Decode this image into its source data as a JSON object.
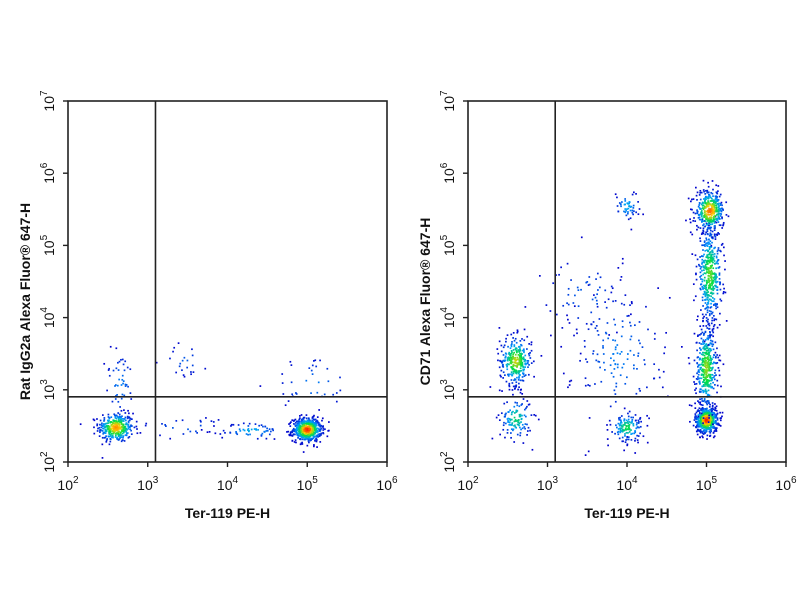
{
  "colors": {
    "frame": "#222222",
    "density_ramp": [
      "#0000cc",
      "#00a0ff",
      "#00e040",
      "#ffd000",
      "#ff2000"
    ]
  },
  "chart_data": [
    {
      "type": "scatter",
      "subtype": "flow-cytometry-density-dot-plot",
      "title": "",
      "xlabel": "Ter-119 PE-H",
      "ylabel": "Rat IgG2a Alexa Fluor® 647-H",
      "x_scale": "log",
      "y_scale": "log",
      "xlim": [
        100,
        1000000
      ],
      "ylim": [
        100,
        10000000
      ],
      "x_ticks": [
        {
          "base": "10",
          "exp": "2"
        },
        {
          "base": "10",
          "exp": "3"
        },
        {
          "base": "10",
          "exp": "4"
        },
        {
          "base": "10",
          "exp": "5"
        },
        {
          "base": "10",
          "exp": "6"
        }
      ],
      "y_ticks": [
        {
          "base": "10",
          "exp": "2"
        },
        {
          "base": "10",
          "exp": "3"
        },
        {
          "base": "10",
          "exp": "4"
        },
        {
          "base": "10",
          "exp": "5"
        },
        {
          "base": "10",
          "exp": "6"
        },
        {
          "base": "10",
          "exp": "7"
        }
      ],
      "quadrant_gate": {
        "x": 1250,
        "y": 800
      },
      "grid": false,
      "legend": "none",
      "populations": [
        {
          "x": 400,
          "y": 300,
          "spread_x": 0.11,
          "spread_y": 0.1,
          "count": 350,
          "peak": 0.85
        },
        {
          "x": 100000,
          "y": 280,
          "spread_x": 0.09,
          "spread_y": 0.08,
          "count": 600,
          "peak": 1.0
        },
        {
          "x": 20000,
          "y": 270,
          "spread_x": 0.2,
          "spread_y": 0.06,
          "count": 60,
          "peak": 0.3
        },
        {
          "x": 450,
          "y": 1200,
          "spread_x": 0.1,
          "spread_y": 0.25,
          "count": 45,
          "peak": 0.2
        },
        {
          "x": 3000,
          "y": 2500,
          "spread_x": 0.15,
          "spread_y": 0.12,
          "count": 22,
          "peak": 0.15
        },
        {
          "x": 120000,
          "y": 1200,
          "spread_x": 0.25,
          "spread_y": 0.2,
          "count": 35,
          "peak": 0.2
        },
        {
          "x": 3000,
          "y": 300,
          "spread_x": 0.35,
          "spread_y": 0.08,
          "count": 25,
          "peak": 0.15
        }
      ]
    },
    {
      "type": "scatter",
      "subtype": "flow-cytometry-density-dot-plot",
      "title": "",
      "xlabel": "Ter-119 PE-H",
      "ylabel": "CD71 Alexa Fluor® 647-H",
      "x_scale": "log",
      "y_scale": "log",
      "xlim": [
        100,
        1000000
      ],
      "ylim": [
        100,
        10000000
      ],
      "x_ticks": [
        {
          "base": "10",
          "exp": "2"
        },
        {
          "base": "10",
          "exp": "3"
        },
        {
          "base": "10",
          "exp": "4"
        },
        {
          "base": "10",
          "exp": "5"
        },
        {
          "base": "10",
          "exp": "6"
        }
      ],
      "y_ticks": [
        {
          "base": "10",
          "exp": "2"
        },
        {
          "base": "10",
          "exp": "3"
        },
        {
          "base": "10",
          "exp": "4"
        },
        {
          "base": "10",
          "exp": "5"
        },
        {
          "base": "10",
          "exp": "6"
        },
        {
          "base": "10",
          "exp": "7"
        }
      ],
      "quadrant_gate": {
        "x": 1250,
        "y": 800
      },
      "grid": false,
      "legend": "none",
      "populations": [
        {
          "x": 400,
          "y": 2500,
          "spread_x": 0.1,
          "spread_y": 0.17,
          "count": 300,
          "peak": 0.7
        },
        {
          "x": 400,
          "y": 400,
          "spread_x": 0.1,
          "spread_y": 0.15,
          "count": 120,
          "peak": 0.45
        },
        {
          "x": 100000,
          "y": 380,
          "spread_x": 0.07,
          "spread_y": 0.09,
          "count": 550,
          "peak": 1.0
        },
        {
          "x": 100000,
          "y": 2000,
          "spread_x": 0.07,
          "spread_y": 0.3,
          "count": 400,
          "peak": 0.65
        },
        {
          "x": 110000,
          "y": 40000,
          "spread_x": 0.08,
          "spread_y": 0.35,
          "count": 450,
          "peak": 0.6
        },
        {
          "x": 110000,
          "y": 300000,
          "spread_x": 0.09,
          "spread_y": 0.14,
          "count": 350,
          "peak": 0.9
        },
        {
          "x": 10000,
          "y": 300,
          "spread_x": 0.1,
          "spread_y": 0.1,
          "count": 130,
          "peak": 0.5
        },
        {
          "x": 10000,
          "y": 350000,
          "spread_x": 0.08,
          "spread_y": 0.1,
          "count": 50,
          "peak": 0.3
        },
        {
          "x": 8000,
          "y": 3000,
          "spread_x": 0.3,
          "spread_y": 0.5,
          "count": 150,
          "peak": 0.2
        },
        {
          "x": 3000,
          "y": 20000,
          "spread_x": 0.3,
          "spread_y": 0.3,
          "count": 60,
          "peak": 0.15
        }
      ]
    }
  ]
}
